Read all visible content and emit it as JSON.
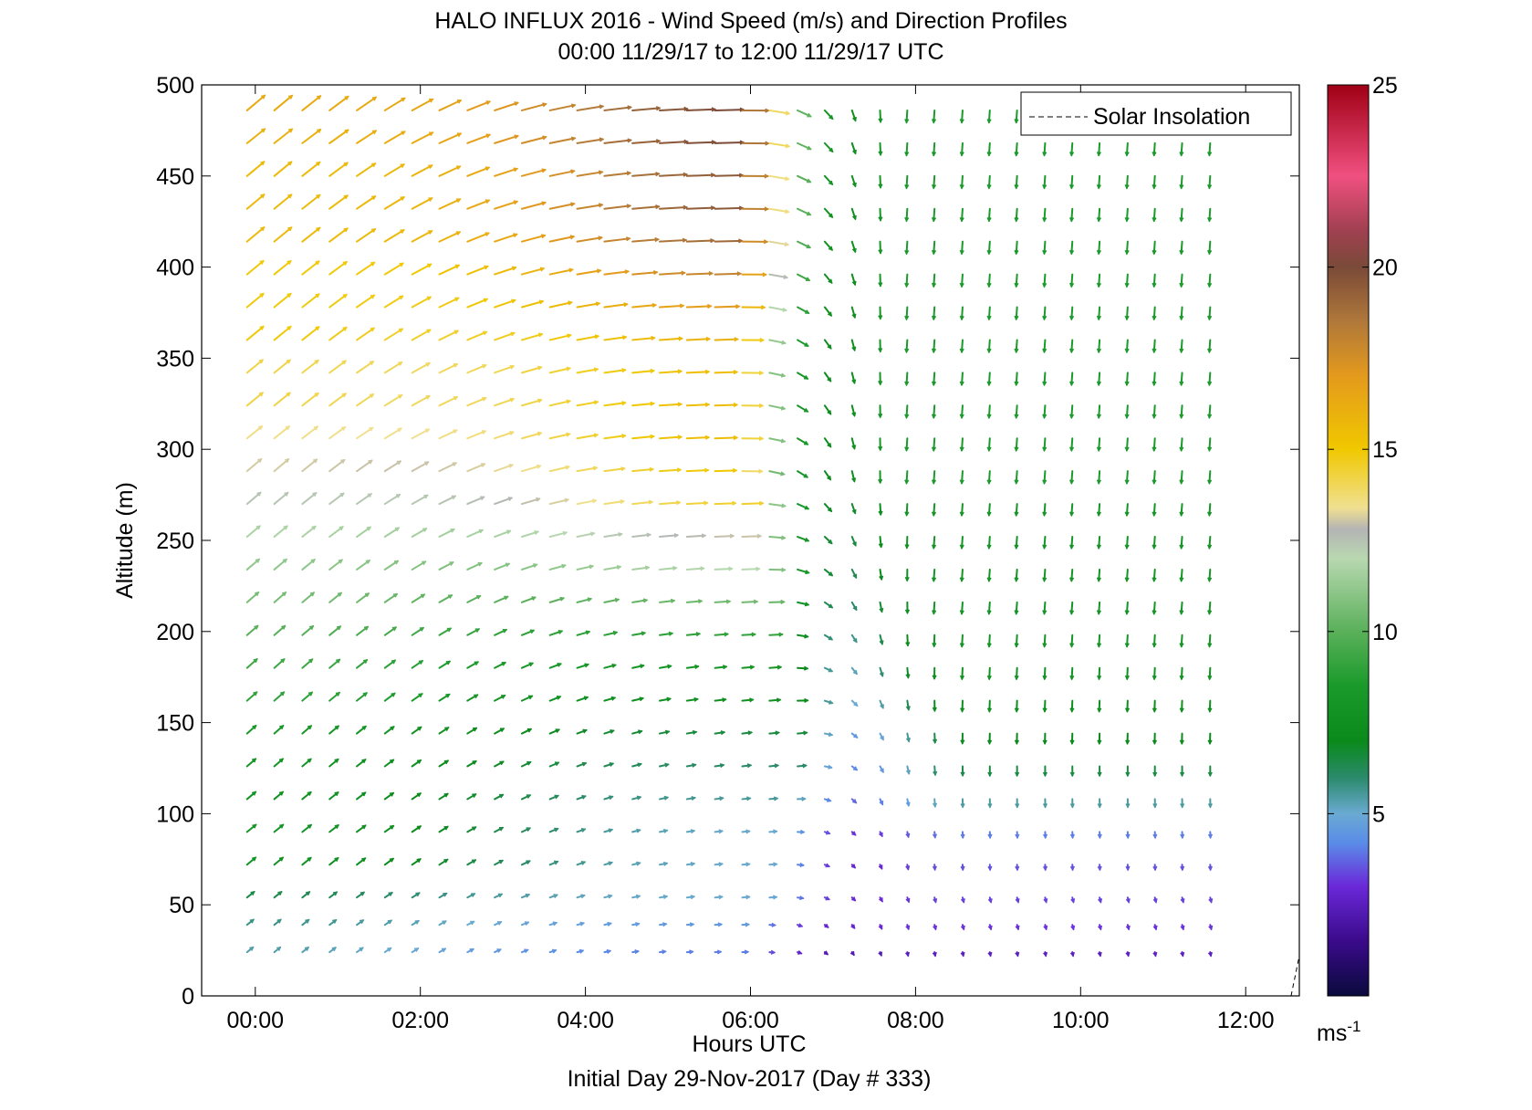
{
  "chart_data": {
    "type": "wind-barb profile (quiver)",
    "title": "HALO INFLUX 2016 - Wind Speed (m/s) and Direction Profiles",
    "subtitle": "00:00 11/29/17 to 12:00 11/29/17  UTC",
    "xlabel": "Hours UTC",
    "xlabel2": "Initial Day 29-Nov-2017 (Day # 333)",
    "ylabel": "Altitude (m)",
    "xlim": [
      -0.65,
      12.65
    ],
    "ylim": [
      0,
      500
    ],
    "x_ticks": [
      0,
      2,
      4,
      6,
      8,
      10,
      12
    ],
    "x_tick_labels": [
      "00:00",
      "02:00",
      "04:00",
      "06:00",
      "08:00",
      "10:00",
      "12:00"
    ],
    "y_ticks": [
      0,
      50,
      100,
      150,
      200,
      250,
      300,
      350,
      400,
      450,
      500
    ],
    "y_tick_labels": [
      "0",
      "50",
      "100",
      "150",
      "200",
      "250",
      "300",
      "350",
      "400",
      "450",
      "500"
    ],
    "legend": {
      "label": "Solar Insolation",
      "position": "top-right"
    },
    "colorbar": {
      "range": [
        0,
        25
      ],
      "ticks": [
        5,
        10,
        15,
        20,
        25
      ],
      "tick_labels": [
        "5",
        "10",
        "15",
        "20",
        "25"
      ],
      "unit_base": "ms",
      "unit_exp": "-1",
      "stops": [
        {
          "v": 0.0,
          "color": "#0a0a3c"
        },
        {
          "v": 1.5,
          "color": "#3a0a8a"
        },
        {
          "v": 3.0,
          "color": "#6a28d8"
        },
        {
          "v": 4.2,
          "color": "#5a8ce8"
        },
        {
          "v": 5.0,
          "color": "#6aaad2"
        },
        {
          "v": 6.0,
          "color": "#2a8a6a"
        },
        {
          "v": 7.0,
          "color": "#0a8a1a"
        },
        {
          "v": 8.5,
          "color": "#1a9a2a"
        },
        {
          "v": 10.0,
          "color": "#5ab05a"
        },
        {
          "v": 12.0,
          "color": "#b8d8b0"
        },
        {
          "v": 12.8,
          "color": "#b4b4b4"
        },
        {
          "v": 13.4,
          "color": "#f0e090"
        },
        {
          "v": 15.0,
          "color": "#f0c800"
        },
        {
          "v": 17.0,
          "color": "#e49a1c"
        },
        {
          "v": 18.5,
          "color": "#b0783a"
        },
        {
          "v": 20.0,
          "color": "#7a4a38"
        },
        {
          "v": 21.0,
          "color": "#a04050"
        },
        {
          "v": 22.5,
          "color": "#f05080"
        },
        {
          "v": 25.0,
          "color": "#a00014"
        }
      ]
    },
    "times": [
      -0.1,
      0.23,
      0.57,
      0.9,
      1.23,
      1.57,
      1.9,
      2.23,
      2.57,
      2.9,
      3.23,
      3.57,
      3.9,
      4.23,
      4.57,
      4.9,
      5.23,
      5.57,
      5.9,
      6.23,
      6.57,
      6.9,
      7.23,
      7.57,
      7.9,
      8.23,
      8.57,
      8.9,
      9.23,
      9.57,
      9.9,
      10.23,
      10.57,
      10.9,
      11.23,
      11.57
    ],
    "altitudes": [
      24,
      39,
      54,
      72,
      90,
      108,
      126,
      144,
      162,
      180,
      198,
      216,
      234,
      252,
      270,
      288,
      306,
      324,
      342,
      360,
      378,
      396,
      414,
      432,
      450,
      468,
      486
    ],
    "vectors_note": "u = eastward, v = northward components (m/s); speed colors the arrows",
    "layers": [
      {
        "alt": 24,
        "u0": 4.2,
        "v0": 3.4,
        "umid": 4.0,
        "vmid": 0.2,
        "u1": 0.5,
        "v1": -2.5,
        "tt": 6.0
      },
      {
        "alt": 39,
        "u0": 4.5,
        "v0": 3.6,
        "umid": 4.5,
        "vmid": 0.3,
        "u1": 0.8,
        "v1": -3.0,
        "tt": 6.0
      },
      {
        "alt": 54,
        "u0": 5.0,
        "v0": 4.0,
        "umid": 5.0,
        "vmid": 0.4,
        "u1": 0.8,
        "v1": -3.2,
        "tt": 6.2
      },
      {
        "alt": 72,
        "u0": 6.0,
        "v0": 5.0,
        "umid": 5.0,
        "vmid": 0.4,
        "u1": 0.2,
        "v1": -3.5,
        "tt": 6.3
      },
      {
        "alt": 90,
        "u0": 6.2,
        "v0": 5.0,
        "umid": 5.0,
        "vmid": 0.4,
        "u1": 0.2,
        "v1": -4.0,
        "tt": 6.4
      },
      {
        "alt": 108,
        "u0": 6.0,
        "v0": 5.0,
        "umid": 5.5,
        "vmid": 0.5,
        "u1": 0.1,
        "v1": -5.5,
        "tt": 6.5
      },
      {
        "alt": 126,
        "u0": 6.0,
        "v0": 5.2,
        "umid": 6.0,
        "vmid": 0.6,
        "u1": 0.0,
        "v1": -6.5,
        "tt": 6.6
      },
      {
        "alt": 144,
        "u0": 6.2,
        "v0": 5.5,
        "umid": 6.5,
        "vmid": 0.6,
        "u1": -0.2,
        "v1": -7.0,
        "tt": 6.6
      },
      {
        "alt": 162,
        "u0": 6.8,
        "v0": 6.0,
        "umid": 7.5,
        "vmid": 0.6,
        "u1": -0.3,
        "v1": -7.5,
        "tt": 6.5
      },
      {
        "alt": 180,
        "u0": 7.0,
        "v0": 6.2,
        "umid": 8.0,
        "vmid": 0.6,
        "u1": -0.4,
        "v1": -7.8,
        "tt": 6.4
      },
      {
        "alt": 198,
        "u0": 7.5,
        "v0": 6.5,
        "umid": 9.0,
        "vmid": 0.5,
        "u1": -0.5,
        "v1": -8.0,
        "tt": 6.3
      },
      {
        "alt": 216,
        "u0": 8.0,
        "v0": 7.0,
        "umid": 10.5,
        "vmid": 0.5,
        "u1": -0.6,
        "v1": -8.0,
        "tt": 6.2
      },
      {
        "alt": 234,
        "u0": 8.5,
        "v0": 7.2,
        "umid": 12.0,
        "vmid": 0.5,
        "u1": -0.6,
        "v1": -8.0,
        "tt": 6.1
      },
      {
        "alt": 252,
        "u0": 9.0,
        "v0": 7.5,
        "umid": 13.0,
        "vmid": 0.5,
        "u1": -0.6,
        "v1": -8.0,
        "tt": 6.0
      },
      {
        "alt": 270,
        "u0": 9.5,
        "v0": 8.0,
        "umid": 14.5,
        "vmid": 0.5,
        "u1": -0.6,
        "v1": -8.0,
        "tt": 5.9
      },
      {
        "alt": 288,
        "u0": 10.0,
        "v0": 8.5,
        "umid": 15.0,
        "vmid": 0.5,
        "u1": -0.6,
        "v1": -8.5,
        "tt": 5.8
      },
      {
        "alt": 306,
        "u0": 10.5,
        "v0": 8.5,
        "umid": 15.5,
        "vmid": 0.5,
        "u1": -0.6,
        "v1": -8.5,
        "tt": 5.8
      },
      {
        "alt": 324,
        "u0": 11.0,
        "v0": 9.0,
        "umid": 15.5,
        "vmid": 0.5,
        "u1": -0.6,
        "v1": -8.5,
        "tt": 5.8
      },
      {
        "alt": 342,
        "u0": 11.0,
        "v0": 9.0,
        "umid": 15.5,
        "vmid": 0.5,
        "u1": -0.6,
        "v1": -8.5,
        "tt": 5.8
      },
      {
        "alt": 360,
        "u0": 11.5,
        "v0": 9.5,
        "umid": 16.0,
        "vmid": 0.5,
        "u1": -0.6,
        "v1": -8.5,
        "tt": 5.8
      },
      {
        "alt": 378,
        "u0": 11.5,
        "v0": 9.5,
        "umid": 17.0,
        "vmid": 0.5,
        "u1": -0.6,
        "v1": -8.5,
        "tt": 5.8
      },
      {
        "alt": 396,
        "u0": 11.5,
        "v0": 9.5,
        "umid": 18.0,
        "vmid": 0.5,
        "u1": -0.6,
        "v1": -8.5,
        "tt": 5.8
      },
      {
        "alt": 414,
        "u0": 12.0,
        "v0": 10.0,
        "umid": 19.0,
        "vmid": 0.5,
        "u1": -0.6,
        "v1": -8.5,
        "tt": 5.8
      },
      {
        "alt": 432,
        "u0": 12.0,
        "v0": 10.0,
        "umid": 19.5,
        "vmid": 0.5,
        "u1": -0.6,
        "v1": -8.5,
        "tt": 5.8
      },
      {
        "alt": 450,
        "u0": 12.0,
        "v0": 10.0,
        "umid": 19.5,
        "vmid": 0.5,
        "u1": -0.6,
        "v1": -8.5,
        "tt": 5.8
      },
      {
        "alt": 468,
        "u0": 12.5,
        "v0": 10.0,
        "umid": 20.0,
        "vmid": 0.5,
        "u1": -0.6,
        "v1": -8.5,
        "tt": 5.8
      },
      {
        "alt": 486,
        "u0": 12.5,
        "v0": 10.5,
        "umid": 20.0,
        "vmid": 0.5,
        "u1": -0.6,
        "v1": -8.5,
        "tt": 5.8
      }
    ],
    "solar_insolation_segment": {
      "x": [
        12.55,
        12.65
      ],
      "y": [
        0,
        22
      ]
    }
  }
}
